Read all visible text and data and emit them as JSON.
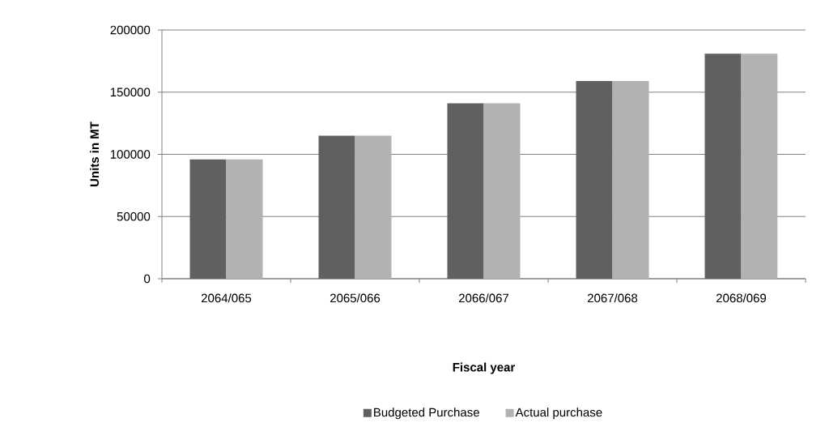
{
  "chart_data": {
    "type": "bar",
    "xlabel": "Fiscal year",
    "ylabel": "Units in MT",
    "categories": [
      "2064/065",
      "2065/066",
      "2066/067",
      "2067/068",
      "2068/069"
    ],
    "series": [
      {
        "name": "Budgeted Purchase",
        "color": "#606060",
        "values": [
          96000,
          115000,
          141000,
          159000,
          181000
        ]
      },
      {
        "name": "Actual purchase",
        "color": "#b2b2b2",
        "values": [
          96000,
          115000,
          141000,
          159000,
          181000
        ]
      }
    ],
    "ylim": [
      0,
      200000
    ],
    "yticks": [
      0,
      50000,
      100000,
      150000,
      200000
    ],
    "grid": "y",
    "legend": "bottom"
  }
}
